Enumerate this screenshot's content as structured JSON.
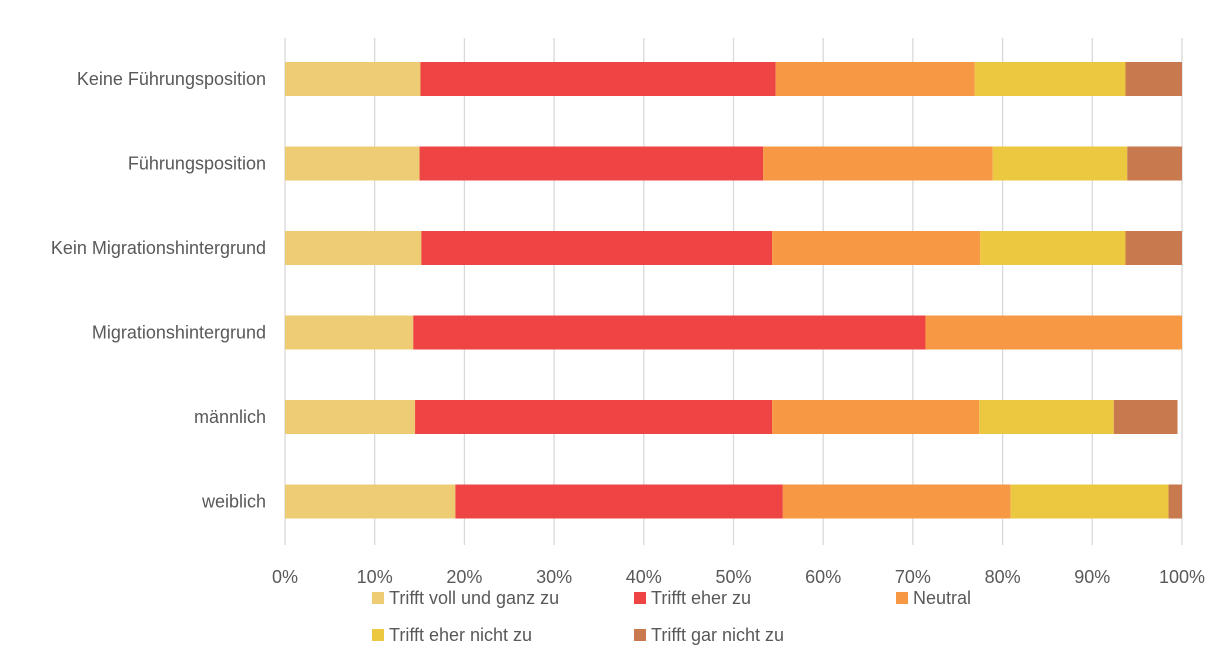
{
  "chart_data": {
    "type": "bar",
    "orientation": "horizontal",
    "stacked": "percent",
    "categories": [
      "Keine Führungsposition",
      "Führungsposition",
      "Kein Migrationshintergrund",
      "Migrationshintergrund",
      "männlich",
      "weiblich"
    ],
    "series": [
      {
        "name": "Trifft voll und ganz zu",
        "color": "#EDCC74",
        "values": [
          15.1,
          15.0,
          15.2,
          14.3,
          14.5,
          19.0
        ]
      },
      {
        "name": "Trifft eher zu",
        "color": "#EE4444",
        "values": [
          39.6,
          38.3,
          39.1,
          57.1,
          39.8,
          36.5
        ]
      },
      {
        "name": "Neutral",
        "color": "#F79845",
        "values": [
          22.2,
          25.6,
          23.2,
          28.6,
          23.1,
          25.4
        ]
      },
      {
        "name": "Trifft eher nicht zu",
        "color": "#EBC840",
        "values": [
          16.8,
          15.0,
          16.2,
          0,
          15.0,
          17.6
        ]
      },
      {
        "name": "Trifft gar nicht zu",
        "color": "#C87A4E",
        "values": [
          6.3,
          6.1,
          6.3,
          0,
          7.1,
          1.5
        ]
      }
    ],
    "x_ticks": [
      "0%",
      "10%",
      "20%",
      "30%",
      "40%",
      "50%",
      "60%",
      "70%",
      "80%",
      "90%",
      "100%"
    ],
    "xlim": [
      0,
      100
    ],
    "grid": true,
    "legend_position": "bottom"
  }
}
